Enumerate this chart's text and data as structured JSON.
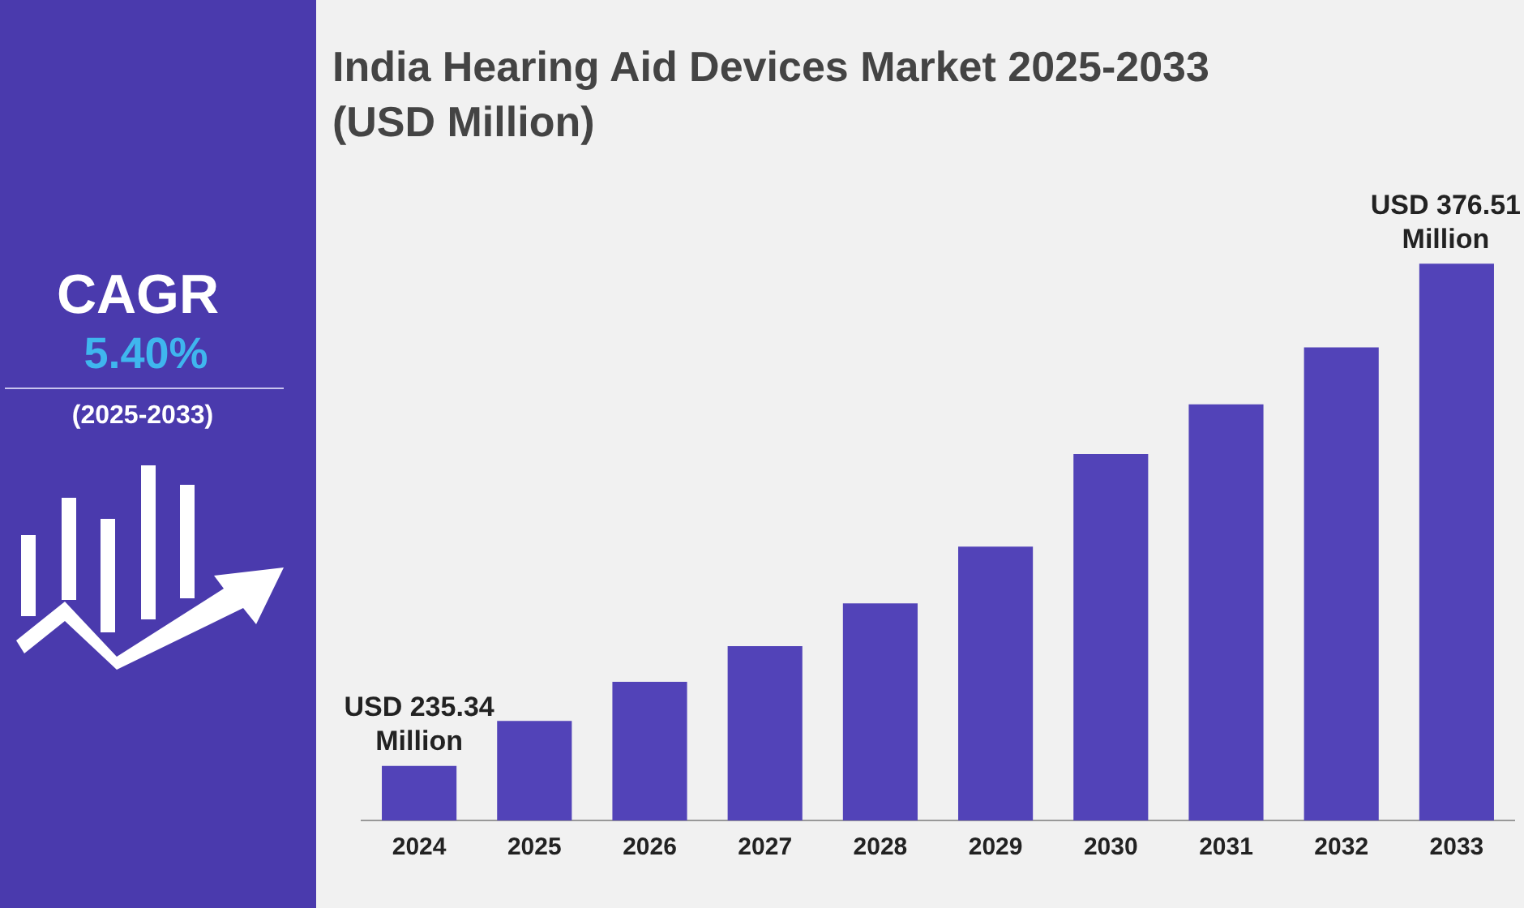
{
  "chart_data": {
    "type": "bar",
    "title": "India Hearing Aid Devices Market 2025-2033 (USD Million)",
    "categories": [
      "2024",
      "2025",
      "2026",
      "2027",
      "2028",
      "2029",
      "2030",
      "2031",
      "2032",
      "2033"
    ],
    "values": [
      235.34,
      248,
      259,
      269,
      281,
      297,
      323,
      337,
      353,
      376.51
    ],
    "value_labels": [
      "USD 235.34 Million",
      null,
      null,
      null,
      null,
      null,
      null,
      null,
      null,
      "USD 376.51 Million"
    ],
    "color": "#5243b8",
    "tick_labels": "x",
    "grid": false,
    "legend": false,
    "annotations": [
      "CAGR",
      "5.40%",
      "(2025-2033)"
    ]
  }
}
